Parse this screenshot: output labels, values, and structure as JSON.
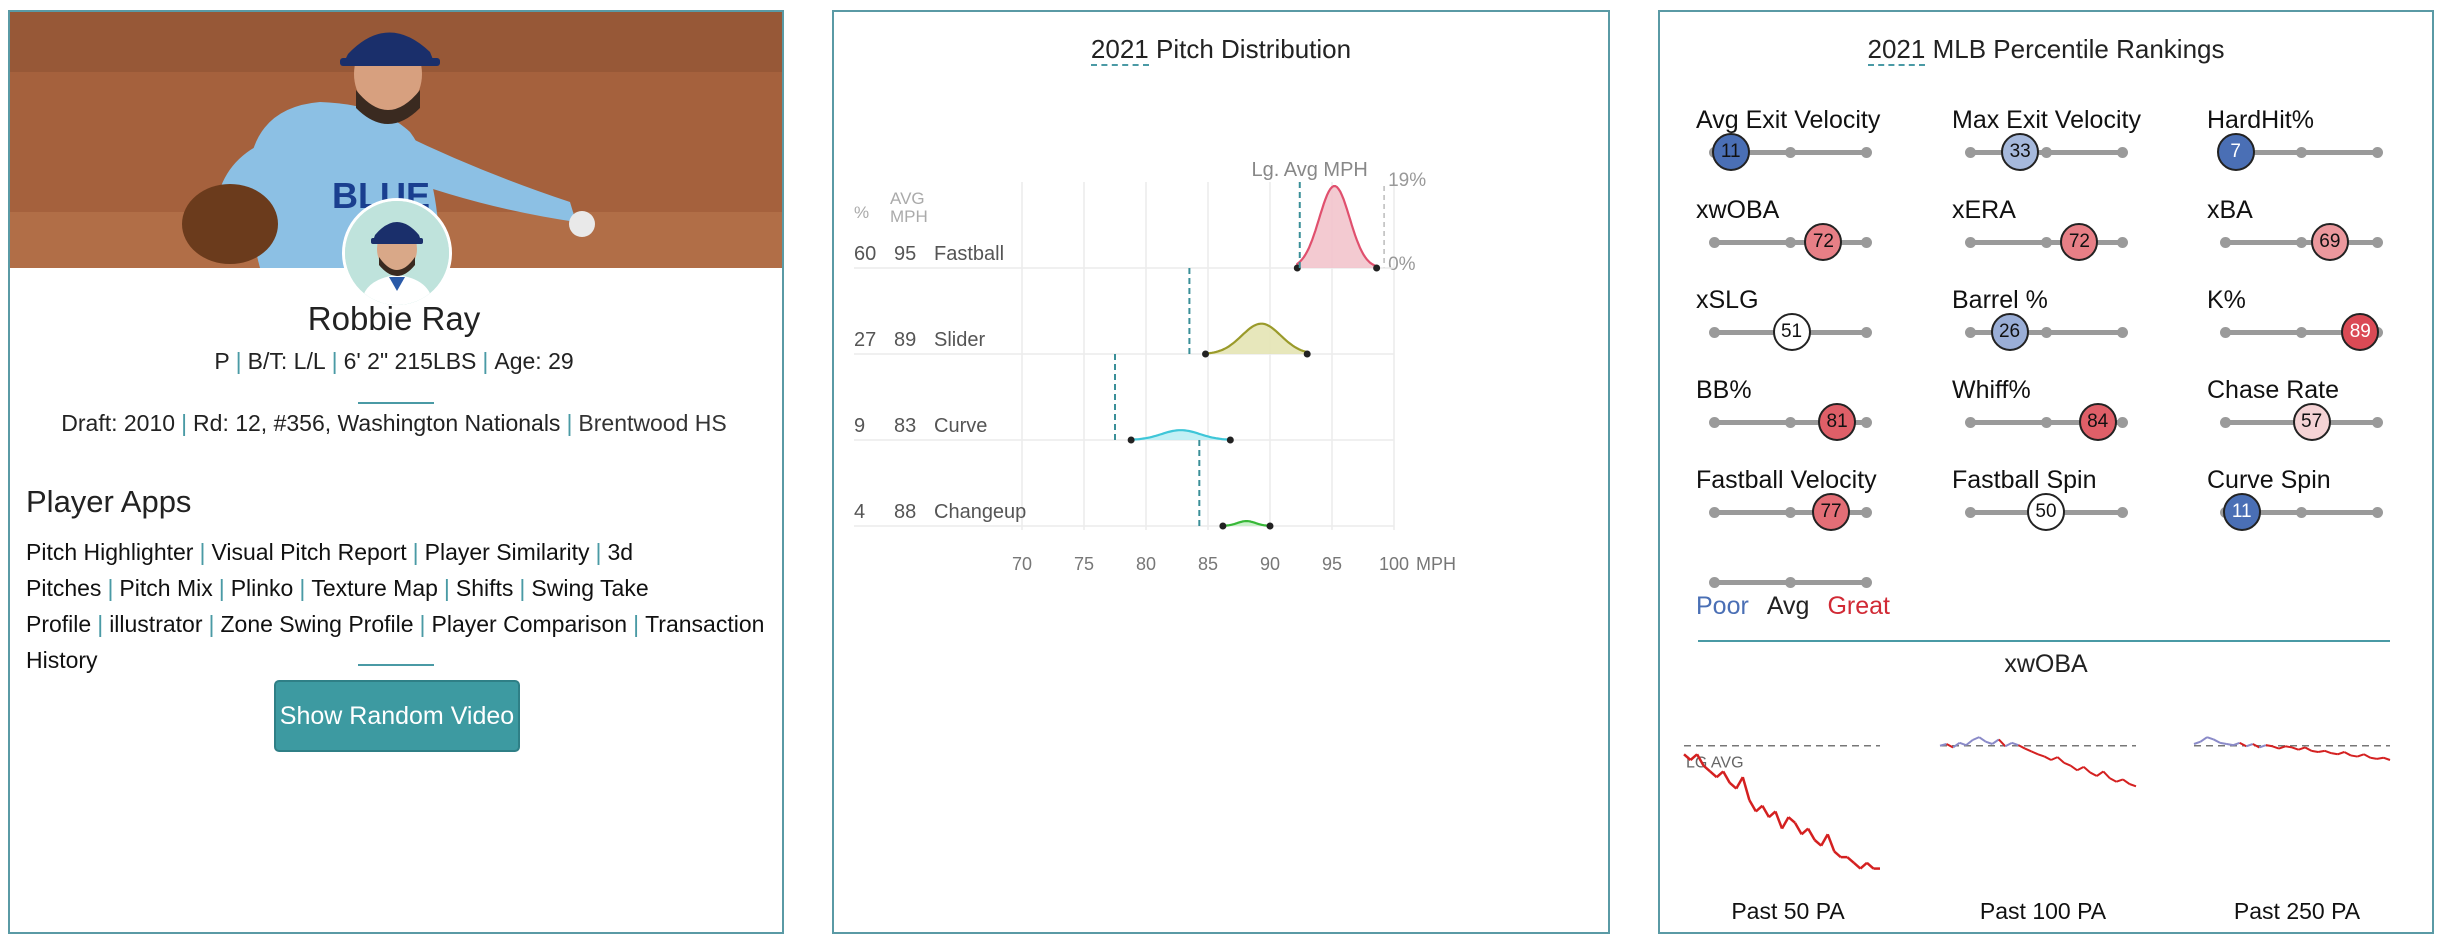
{
  "player": {
    "name": "Robbie Ray",
    "position": "P",
    "bats_throws": "B/T: L/L",
    "height_weight": "6' 2\" 215LBS",
    "age": "Age: 29",
    "draft_label": "Draft:",
    "draft_year": "2010",
    "draft_round": "Rd: 12, #356,",
    "draft_team": "Washington Nationals",
    "school": "Brentwood HS"
  },
  "apps": {
    "heading": "Player Apps",
    "links": [
      "Pitch Highlighter",
      "Visual Pitch Report",
      "Player Similarity",
      "3d Pitches",
      "Pitch Mix",
      "Plinko",
      "Texture Map",
      "Shifts",
      "Swing Take Profile",
      "illustrator",
      "Zone Swing Profile",
      "Player Comparison",
      "Transaction History"
    ],
    "random_video_label": "Show Random Video"
  },
  "pitch_distribution": {
    "year": "2021",
    "title_rest": "Pitch Distribution",
    "lg_avg_label": "Lg. Avg MPH",
    "header_pct": "%",
    "header_avg": "AVG",
    "header_mph": "MPH",
    "scale_top": "19%",
    "scale_bottom": "0%",
    "x_ticks": [
      "70",
      "75",
      "80",
      "85",
      "90",
      "95",
      "100"
    ],
    "x_unit": "MPH",
    "chart_data": {
      "type": "area",
      "title": "2021 Pitch Distribution",
      "xlabel": "MPH",
      "xlim": [
        70,
        100
      ],
      "series": [
        {
          "name": "Fastball",
          "pct": "60",
          "avg": "95",
          "mean": 95.2,
          "range": [
            92.2,
            98.6
          ],
          "lg_avg": 92.4,
          "color": "#e0506e",
          "fill": "#f2c4cc",
          "peak": 1.0
        },
        {
          "name": "Slider",
          "pct": "27",
          "avg": "89",
          "mean": 89.3,
          "range": [
            84.8,
            93.0
          ],
          "lg_avg": 83.5,
          "color": "#9a9a2a",
          "fill": "#e4e4b4",
          "peak": 0.37
        },
        {
          "name": "Curve",
          "pct": "9",
          "avg": "83",
          "mean": 82.8,
          "range": [
            78.8,
            86.8
          ],
          "lg_avg": 77.5,
          "color": "#3ec6d8",
          "fill": "#bdeef4",
          "peak": 0.12
        },
        {
          "name": "Changeup",
          "pct": "4",
          "avg": "88",
          "mean": 88.1,
          "range": [
            86.2,
            90.0
          ],
          "lg_avg": 84.3,
          "color": "#38b838",
          "fill": "#c6efc6",
          "peak": 0.06
        }
      ]
    }
  },
  "percentiles": {
    "year": "2021",
    "title_rest": "MLB Percentile Rankings",
    "metrics": [
      {
        "name": "Avg Exit Velocity",
        "value": 11,
        "color": "#4a6fb5",
        "text_color": "#111"
      },
      {
        "name": "Max Exit Velocity",
        "value": 33,
        "color": "#a6b9dc",
        "text_color": "#111"
      },
      {
        "name": "HardHit%",
        "value": 7,
        "color": "#4a6fb5",
        "text_color": "#fff"
      },
      {
        "name": "xwOBA",
        "value": 72,
        "color": "#e77f86",
        "text_color": "#111"
      },
      {
        "name": "xERA",
        "value": 72,
        "color": "#e77f86",
        "text_color": "#111"
      },
      {
        "name": "xBA",
        "value": 69,
        "color": "#eb989d",
        "text_color": "#111"
      },
      {
        "name": "xSLG",
        "value": 51,
        "color": "#ffffff",
        "text_color": "#111"
      },
      {
        "name": "Barrel %",
        "value": 26,
        "color": "#9aaed6",
        "text_color": "#111"
      },
      {
        "name": "K%",
        "value": 89,
        "color": "#da4a55",
        "text_color": "#fff"
      },
      {
        "name": "BB%",
        "value": 81,
        "color": "#df5f68",
        "text_color": "#111"
      },
      {
        "name": "Whiff%",
        "value": 84,
        "color": "#df5f68",
        "text_color": "#111"
      },
      {
        "name": "Chase Rate",
        "value": 57,
        "color": "#f5d3d5",
        "text_color": "#111"
      },
      {
        "name": "Fastball Velocity",
        "value": 77,
        "color": "#e36e76",
        "text_color": "#111"
      },
      {
        "name": "Fastball Spin",
        "value": 50,
        "color": "#ffffff",
        "text_color": "#111"
      },
      {
        "name": "Curve Spin",
        "value": 11,
        "color": "#4a6fb5",
        "text_color": "#fff"
      }
    ],
    "legend": {
      "poor": "Poor",
      "avg": "Avg",
      "great": "Great",
      "poor_color": "#4a6fb5",
      "avg_color": "#222222",
      "great_color": "#d12a35"
    }
  },
  "xwoba": {
    "title": "xwOBA",
    "lg_avg_label": "LG AVG",
    "panels": [
      {
        "label": "Past 50 PA",
        "values": [
          0.3,
          0.29,
          0.3,
          0.28,
          0.27,
          0.26,
          0.27,
          0.25,
          0.24,
          0.26,
          0.22,
          0.2,
          0.21,
          0.19,
          0.2,
          0.17,
          0.19,
          0.18,
          0.16,
          0.17,
          0.15,
          0.14,
          0.16,
          0.13,
          0.12,
          0.12,
          0.11,
          0.1,
          0.11,
          0.1,
          0.1
        ]
      },
      {
        "label": "Past 100 PA",
        "values": [
          0.315,
          0.318,
          0.312,
          0.32,
          0.316,
          0.325,
          0.33,
          0.322,
          0.318,
          0.326,
          0.314,
          0.32,
          0.316,
          0.31,
          0.305,
          0.3,
          0.296,
          0.29,
          0.295,
          0.285,
          0.28,
          0.272,
          0.278,
          0.268,
          0.262,
          0.27,
          0.258,
          0.252,
          0.256,
          0.248,
          0.244
        ]
      },
      {
        "label": "Past 250 PA",
        "values": [
          0.318,
          0.322,
          0.33,
          0.326,
          0.32,
          0.318,
          0.316,
          0.32,
          0.314,
          0.318,
          0.312,
          0.316,
          0.314,
          0.31,
          0.314,
          0.312,
          0.308,
          0.312,
          0.306,
          0.304,
          0.306,
          0.302,
          0.3,
          0.304,
          0.298,
          0.296,
          0.3,
          0.294,
          0.292,
          0.294,
          0.29
        ]
      }
    ],
    "lg_avg_value": 0.315
  }
}
